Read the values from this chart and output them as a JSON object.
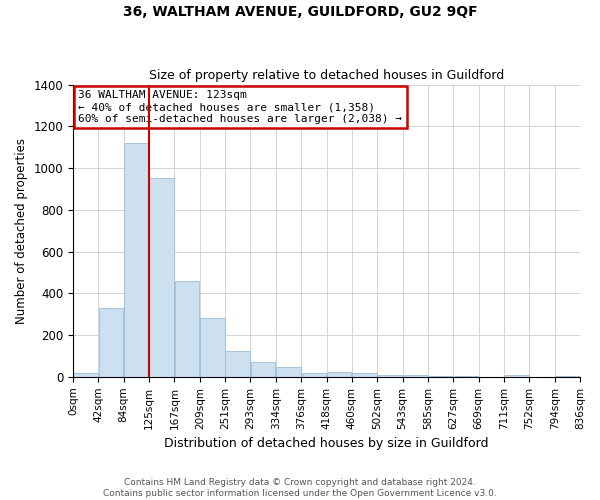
{
  "title": "36, WALTHAM AVENUE, GUILDFORD, GU2 9QF",
  "subtitle": "Size of property relative to detached houses in Guildford",
  "xlabel": "Distribution of detached houses by size in Guildford",
  "ylabel": "Number of detached properties",
  "footnote1": "Contains HM Land Registry data © Crown copyright and database right 2024.",
  "footnote2": "Contains public sector information licensed under the Open Government Licence v3.0.",
  "bins": [
    "0sqm",
    "42sqm",
    "84sqm",
    "125sqm",
    "167sqm",
    "209sqm",
    "251sqm",
    "293sqm",
    "334sqm",
    "376sqm",
    "418sqm",
    "460sqm",
    "502sqm",
    "543sqm",
    "585sqm",
    "627sqm",
    "669sqm",
    "711sqm",
    "752sqm",
    "794sqm",
    "836sqm"
  ],
  "values": [
    20,
    330,
    1120,
    950,
    460,
    280,
    125,
    70,
    45,
    20,
    25,
    20,
    10,
    10,
    5,
    5,
    0,
    10,
    0,
    5
  ],
  "bar_color": "#cde0f0",
  "bar_edge_color": "#9dbdd8",
  "vline_x_label": "125sqm",
  "vline_bin_index": 3,
  "annotation_line1": "36 WALTHAM AVENUE: 123sqm",
  "annotation_line2": "← 40% of detached houses are smaller (1,358)",
  "annotation_line3": "60% of semi-detached houses are larger (2,038) →",
  "annotation_box_color": "#ffffff",
  "annotation_box_edge": "#cc0000",
  "vline_color": "#cc0000",
  "ylim": [
    0,
    1400
  ],
  "yticks": [
    0,
    200,
    400,
    600,
    800,
    1000,
    1200,
    1400
  ],
  "background_color": "#ffffff",
  "grid_color": "#cccccc"
}
